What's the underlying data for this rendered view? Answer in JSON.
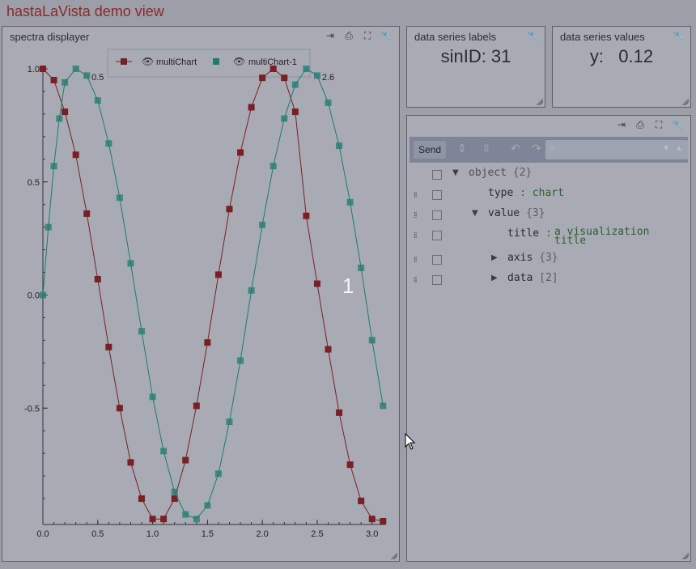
{
  "app": {
    "title": "hastaLaVista demo view"
  },
  "spectra": {
    "title": "spectra displayer",
    "tools": [
      "export-icon",
      "print-icon",
      "fullscreen-icon",
      "wrench-icon"
    ],
    "overlay_label": "1"
  },
  "labels_panel": {
    "title": "data series labels",
    "value": "sinID: 31"
  },
  "values_panel": {
    "title": "data series values",
    "value": "y:   0.12"
  },
  "json_panel": {
    "send_label": "Send",
    "tree": {
      "root": {
        "key": "object",
        "count": "{2}"
      },
      "type": {
        "key": "type",
        "sep": ":",
        "value": "chart"
      },
      "value": {
        "key": "value",
        "count": "{3}"
      },
      "title": {
        "key": "title",
        "sep": ":",
        "value_line1": "a visualization",
        "value_line2": "title"
      },
      "axis": {
        "key": "axis",
        "count": "{3}"
      },
      "data": {
        "key": "data",
        "count": "[2]"
      }
    }
  },
  "colors": {
    "series1": "#7a1f24",
    "series2": "#1f7b6e",
    "title": "#8a2a2a"
  },
  "chart_data": {
    "type": "line",
    "title": "",
    "xlabel": "",
    "ylabel": "",
    "xlim": [
      0,
      3.14
    ],
    "ylim": [
      -1,
      1
    ],
    "x_ticks": [
      "0.0",
      "0.5",
      "1.0",
      "1.5",
      "2.0",
      "2.5",
      "3.0"
    ],
    "y_ticks": [
      "1.0",
      "0.5",
      "0.0",
      "-0.5"
    ],
    "legend": {
      "placement": "top-center"
    },
    "annotations": [
      {
        "text": "0.5",
        "x": 0.5
      },
      {
        "text": "2.6",
        "x": 2.6
      }
    ],
    "series": [
      {
        "name": "multiChart",
        "x": [
          0,
          0.1,
          0.2,
          0.3,
          0.4,
          0.5,
          0.6,
          0.7,
          0.8,
          0.9,
          1.0,
          1.1,
          1.2,
          1.3,
          1.4,
          1.5,
          1.6,
          1.7,
          1.8,
          1.9,
          2.0,
          2.1,
          2.2,
          2.3,
          2.4,
          2.5,
          2.6,
          2.7,
          2.8,
          2.9,
          3.0,
          3.1
        ],
        "y": [
          1.0,
          0.95,
          0.81,
          0.62,
          0.36,
          0.07,
          -0.23,
          -0.5,
          -0.74,
          -0.9,
          -0.99,
          -0.99,
          -0.9,
          -0.73,
          -0.49,
          -0.21,
          0.09,
          0.38,
          0.63,
          0.83,
          0.96,
          1.0,
          0.96,
          0.81,
          0.35,
          0.05,
          -0.24,
          -0.52,
          -0.75,
          -0.91,
          -0.99,
          -1.0
        ]
      },
      {
        "name": "multiChart-1",
        "x": [
          0,
          0.05,
          0.1,
          0.15,
          0.2,
          0.3,
          0.4,
          0.5,
          0.6,
          0.7,
          0.8,
          0.9,
          1.0,
          1.1,
          1.2,
          1.3,
          1.4,
          1.5,
          1.6,
          1.7,
          1.8,
          1.9,
          2.0,
          2.1,
          2.2,
          2.3,
          2.4,
          2.5,
          2.6,
          2.7,
          2.8,
          2.9,
          3.0,
          3.1
        ],
        "y": [
          0.0,
          0.3,
          0.57,
          0.78,
          0.94,
          1.0,
          0.97,
          0.86,
          0.67,
          0.43,
          0.14,
          -0.16,
          -0.45,
          -0.69,
          -0.87,
          -0.97,
          -0.99,
          -0.93,
          -0.79,
          -0.56,
          -0.29,
          0.02,
          0.31,
          0.57,
          0.78,
          0.93,
          1.0,
          0.97,
          0.85,
          0.66,
          0.41,
          0.12,
          -0.2,
          -0.49
        ]
      }
    ]
  }
}
